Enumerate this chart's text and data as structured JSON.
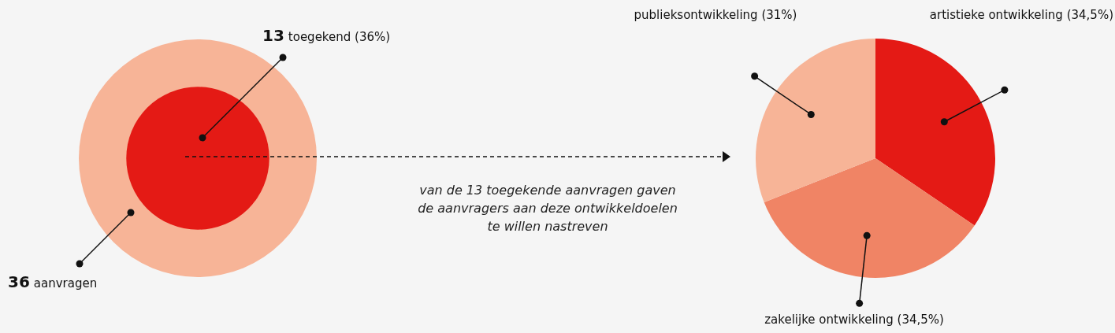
{
  "chart_data": [
    {
      "type": "other",
      "categories": [
        "aanvragen",
        "toegekend (36%)"
      ],
      "values": [
        36,
        13
      ],
      "colors": [
        "#f7b497",
        "#e41a15"
      ],
      "data_labels": true
    },
    {
      "type": "pie",
      "categories": [
        "artistieke ontwikkeling (34,5%)",
        "zakelijke ontwikkeling (34,5%)",
        "publieksontwikkeling (31%)"
      ],
      "values": [
        34.5,
        34.5,
        31
      ],
      "colors": [
        "#e41a15",
        "#f08465",
        "#f7b497"
      ],
      "annotations": [
        "van de 13 toegekende aanvragen gaven de aanvragers aan deze ontwikkeldoelen te willen nastreven"
      ]
    }
  ]
}
